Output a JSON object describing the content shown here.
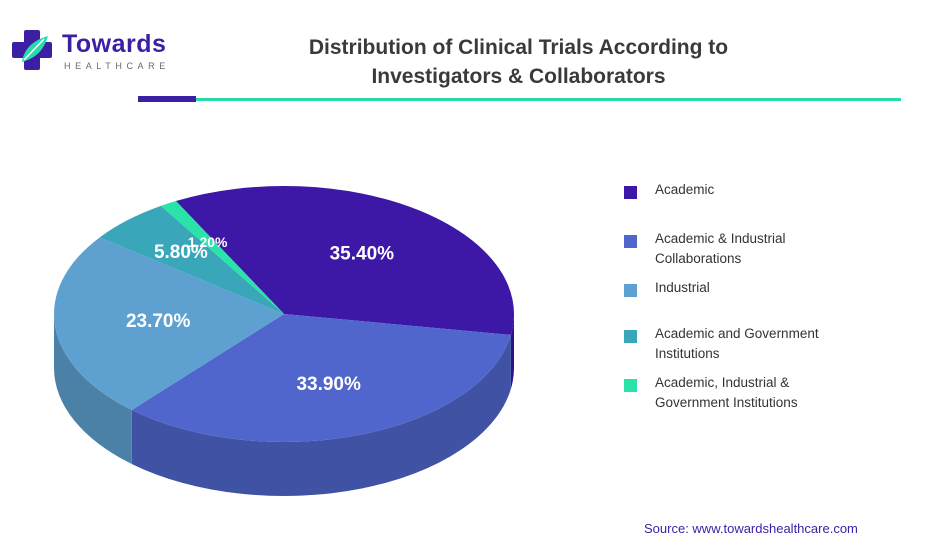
{
  "brand": {
    "name": "Towards",
    "tagline": "HEALTHCARE",
    "colors": {
      "primary": "#3d1fa5",
      "accent": "#2ad8ae"
    }
  },
  "header": {
    "title_line1": "Distribution of Clinical Trials According to",
    "title_line2": "Investigators & Collaborators"
  },
  "chart_data": {
    "type": "pie",
    "title": "Distribution of Clinical Trials According to Investigators & Collaborators",
    "slices": [
      {
        "label": "Academic",
        "value": 35.4,
        "display": "35.40%",
        "color": "#3d17a6"
      },
      {
        "label": "Academic & Industrial Collaborations",
        "value": 33.9,
        "display": "33.90%",
        "color": "#5066cc"
      },
      {
        "label": "Industrial",
        "value": 23.7,
        "display": "23.70%",
        "color": "#5ea1d1"
      },
      {
        "label": "Academic and Government Institutions",
        "value": 5.8,
        "display": "5.80%",
        "color": "#3aa6ba"
      },
      {
        "label": "Academic, Industrial & Government Institutions",
        "value": 1.2,
        "display": "1.20%",
        "color": "#2ae3a9"
      }
    ],
    "legend_position": "right"
  },
  "legend": {
    "items": [
      {
        "lines": [
          "Academic"
        ]
      },
      {
        "lines": [
          "Academic & Industrial",
          "Collaborations"
        ]
      },
      {
        "lines": [
          "Industrial"
        ]
      },
      {
        "lines": [
          "Academic and Government",
          "Institutions"
        ]
      },
      {
        "lines": [
          "Academic, Industrial &",
          "Government Institutions"
        ]
      }
    ]
  },
  "footer": {
    "source": "Source: www.towardshealthcare.com"
  }
}
